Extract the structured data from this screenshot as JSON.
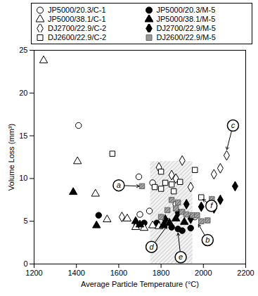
{
  "chart_data": {
    "type": "scatter",
    "x_label": "Average Particle Temperature (°C)",
    "y_label": "Volume Loss (mm³)",
    "xlim": [
      1200,
      2200
    ],
    "xticks": [
      1200,
      1400,
      1600,
      1800,
      2000,
      2200
    ],
    "ylim": [
      0,
      25
    ],
    "yticks": [
      0,
      5,
      10,
      15,
      20,
      25
    ],
    "legend": "top",
    "series": [
      {
        "name": "JP5000/20.3/C-1",
        "marker": "open-circle",
        "color": "#000000",
        "x": [
          1410,
          1695,
          1760,
          1700,
          1745,
          1830,
          1870,
          1960
        ],
        "values": [
          16.2,
          10.2,
          9.5,
          5.8,
          6.2,
          5.0,
          7.0,
          5.5
        ]
      },
      {
        "name": "JP5000/20.3/M-5",
        "marker": "filled-circle",
        "color": "#000000",
        "x": [
          1505,
          1685,
          1720,
          1780,
          1850,
          1880,
          1900,
          1940
        ],
        "values": [
          5.7,
          4.5,
          4.8,
          4.8,
          4.3,
          4.1,
          3.9,
          4.2
        ]
      },
      {
        "name": "JP5000/38.1/C-1",
        "marker": "open-triangle",
        "color": "#000000",
        "x": [
          1245,
          1405,
          1490,
          1545,
          1640,
          1680,
          1720,
          1760,
          1790
        ],
        "values": [
          23.8,
          12.0,
          8.2,
          5.2,
          5.3,
          4.3,
          4.2,
          4.5,
          4.4
        ]
      },
      {
        "name": "JP5000/38.1/M-5",
        "marker": "filled-triangle",
        "color": "#000000",
        "x": [
          1385,
          1495,
          1680,
          1700,
          1810,
          1840,
          1870,
          1910
        ],
        "values": [
          8.4,
          4.5,
          5.0,
          4.6,
          4.5,
          4.8,
          5.3,
          4.9
        ]
      },
      {
        "name": "DJ2700/22.9/C-2",
        "marker": "open-diamond",
        "color": "#000000",
        "x": [
          1615,
          1790,
          1850,
          1870,
          1900,
          1940,
          2040,
          2050,
          2080,
          2110
        ],
        "values": [
          5.5,
          11.3,
          10.4,
          10.0,
          12.1,
          9.0,
          7.0,
          10.5,
          11.2,
          12.7
        ]
      },
      {
        "name": "DJ2700/22.9/M-5",
        "marker": "filled-diamond",
        "color": "#000000",
        "x": [
          1820,
          1880,
          1920,
          1940,
          1990,
          2050,
          2080,
          2150
        ],
        "values": [
          5.2,
          6.0,
          7.0,
          5.3,
          6.7,
          6.5,
          7.5,
          9.1
        ]
      },
      {
        "name": "DJ2600/22.9/C-2",
        "marker": "open-square",
        "color": "#000000",
        "x": [
          1570,
          1770,
          1800,
          1800,
          1820,
          1850,
          1860,
          1890,
          1960,
          1990
        ],
        "values": [
          12.9,
          9.0,
          8.8,
          10.8,
          9.5,
          9.3,
          8.5,
          9.6,
          11.0,
          7.8
        ]
      },
      {
        "name": "DJ2600/22.9/M-5",
        "marker": "hatched-square",
        "color": "#666666",
        "x": [
          1710,
          1800,
          1830,
          1850,
          1870,
          1880,
          1900,
          1920,
          1950,
          1970,
          1990,
          2020,
          2040
        ],
        "values": [
          9.1,
          5.5,
          6.3,
          7.5,
          6.5,
          7.2,
          6.1,
          5.8,
          5.7,
          5.7,
          5.0,
          5.1,
          7.6
        ]
      }
    ],
    "shaded_region": {
      "x": [
        1750,
        1950
      ],
      "y": [
        0,
        12
      ]
    },
    "annotations": [
      {
        "text": "a",
        "x": 1600,
        "y": 9.2,
        "target_x": 1700,
        "target_y": 9.1
      },
      {
        "text": "b",
        "x": 2020,
        "y": 2.8,
        "target_x": 1975,
        "target_y": 4.7
      },
      {
        "text": "c",
        "x": 2140,
        "y": 16.2,
        "target_x": 2110,
        "target_y": 13.3
      },
      {
        "text": "d",
        "x": 1755,
        "y": 2.0,
        "target_x": 1830,
        "target_y": 4.5
      },
      {
        "text": "e",
        "x": 1893,
        "y": 0.8,
        "target_x": 1880,
        "target_y": 3.7
      },
      {
        "text": "f",
        "x": 2038,
        "y": 6.8,
        "target_x": 1995,
        "target_y": 7.6
      }
    ]
  }
}
